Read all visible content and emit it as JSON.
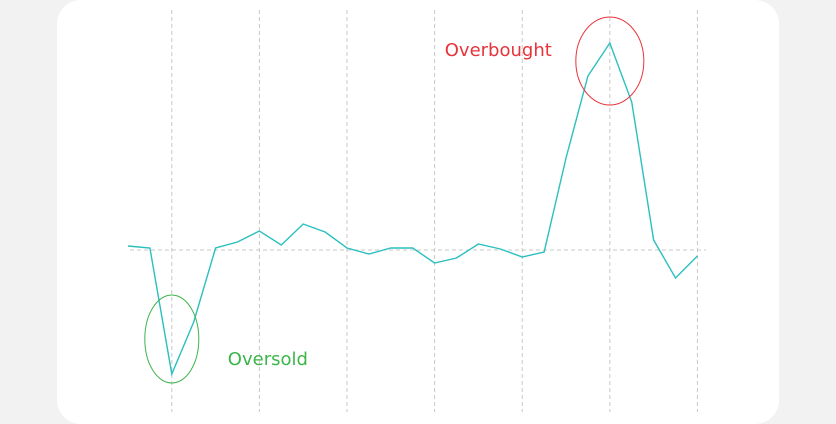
{
  "chart_data": {
    "type": "line",
    "x": [
      0,
      1,
      2,
      3,
      4,
      5,
      6,
      7,
      8,
      9,
      10,
      11,
      12,
      13,
      14,
      15,
      16,
      17,
      18,
      19,
      20,
      21,
      22,
      23,
      24,
      25,
      26
    ],
    "series": [
      {
        "color": "#2bbfbf",
        "values": [
          4,
          2,
          -124,
          -72,
          2,
          8,
          19,
          5,
          26,
          18,
          2,
          -4,
          2,
          2,
          -13,
          -8,
          6,
          1,
          -7,
          -2,
          92,
          174,
          207,
          148,
          10,
          -28,
          -6
        ]
      }
    ],
    "xlim": [
      0,
      26.3
    ],
    "ylim": [
      -160,
      250
    ],
    "xticks": [
      2,
      6,
      10,
      14,
      18,
      22,
      26
    ],
    "yticks": [
      0
    ],
    "grid": true,
    "annotations": [
      {
        "text": "Overbought",
        "color": "#e8333a",
        "x": 22,
        "y": 207
      },
      {
        "text": "Oversold",
        "color": "#3cb54a",
        "x": 2,
        "y": -124
      }
    ]
  }
}
